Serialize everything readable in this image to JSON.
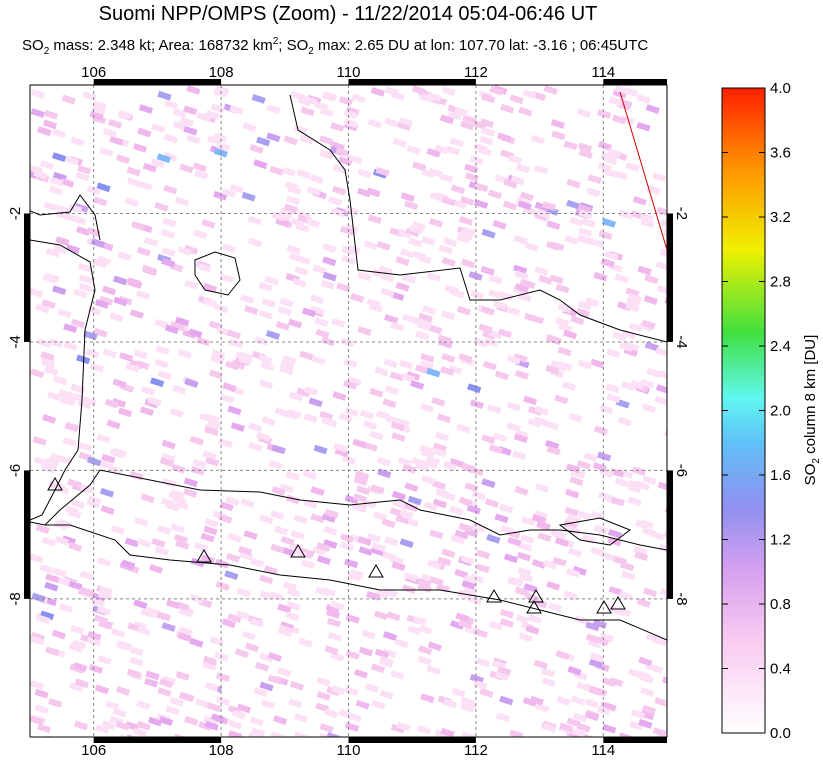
{
  "map": {
    "title": "Suomi NPP/OMPS (Zoom) - 11/22/2014 05:04-06:46 UT",
    "subtitle": [
      "SO",
      "2",
      " mass: 2.348 kt; Area: 168732 km",
      "2",
      "; SO",
      "2",
      " max: 2.65 DU at lon: 107.70 lat: -3.16 ; 06:45UTC"
    ],
    "lonlim": [
      105,
      115
    ],
    "latlim": [
      -10.15,
      0
    ],
    "lonticks": [
      106,
      108,
      110,
      112,
      114
    ],
    "latticks": [
      -2,
      -4,
      -6,
      -8
    ],
    "colorbar": {
      "label": [
        "SO",
        "2",
        " column 8 km [DU]"
      ],
      "clim": [
        0,
        4
      ],
      "ticks": [
        {
          "value": 0,
          "label": "0.0"
        },
        {
          "value": 0.4,
          "label": "0.4"
        },
        {
          "value": 0.8,
          "label": "0.8"
        },
        {
          "value": 1.2,
          "label": "1.2"
        },
        {
          "value": 1.6,
          "label": "1.6"
        },
        {
          "value": 2.0,
          "label": "2.0"
        },
        {
          "value": 2.4,
          "label": "2.4"
        },
        {
          "value": 2.8,
          "label": "2.8"
        },
        {
          "value": 3.2,
          "label": "3.2"
        },
        {
          "value": 3.6,
          "label": "3.6"
        },
        {
          "value": 4.0,
          "label": "4.0"
        }
      ]
    }
  }
}
